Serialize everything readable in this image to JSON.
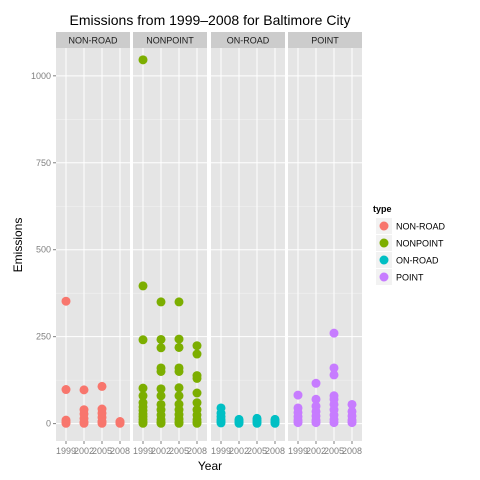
{
  "chart_data": {
    "type": "scatter",
    "title": "Emissions from 1999–2008 for Baltimore City",
    "xlabel": "Year",
    "ylabel": "Emissions",
    "x_ticks": [
      "1999",
      "2002",
      "2005",
      "2008"
    ],
    "ylim": [
      -50,
      1080
    ],
    "y_ticks": [
      0,
      250,
      500,
      750,
      1000
    ],
    "grid": true,
    "legend": {
      "title": "type",
      "position": "right"
    },
    "facets": [
      "NON-ROAD",
      "NONPOINT",
      "ON-ROAD",
      "POINT"
    ],
    "colors": {
      "NON-ROAD": "#f8766d",
      "NONPOINT": "#7cae00",
      "ON-ROAD": "#00bfc4",
      "POINT": "#c77cff"
    },
    "series": [
      {
        "name": "NON-ROAD",
        "points": [
          {
            "x": "1999",
            "y": 352
          },
          {
            "x": "1999",
            "y": 98
          },
          {
            "x": "1999",
            "y": 10
          },
          {
            "x": "1999",
            "y": 4
          },
          {
            "x": "1999",
            "y": 1
          },
          {
            "x": "2002",
            "y": 97
          },
          {
            "x": "2002",
            "y": 40
          },
          {
            "x": "2002",
            "y": 28
          },
          {
            "x": "2002",
            "y": 15
          },
          {
            "x": "2002",
            "y": 5
          },
          {
            "x": "2002",
            "y": 1
          },
          {
            "x": "2005",
            "y": 107
          },
          {
            "x": "2005",
            "y": 42
          },
          {
            "x": "2005",
            "y": 30
          },
          {
            "x": "2005",
            "y": 18
          },
          {
            "x": "2005",
            "y": 6
          },
          {
            "x": "2005",
            "y": 1
          },
          {
            "x": "2008",
            "y": 6
          },
          {
            "x": "2008",
            "y": 3
          },
          {
            "x": "2008",
            "y": 1
          }
        ]
      },
      {
        "name": "NONPOINT",
        "points": [
          {
            "x": "1999",
            "y": 1046
          },
          {
            "x": "1999",
            "y": 396
          },
          {
            "x": "1999",
            "y": 241
          },
          {
            "x": "1999",
            "y": 102
          },
          {
            "x": "1999",
            "y": 80
          },
          {
            "x": "1999",
            "y": 60
          },
          {
            "x": "1999",
            "y": 48
          },
          {
            "x": "1999",
            "y": 38
          },
          {
            "x": "1999",
            "y": 28
          },
          {
            "x": "1999",
            "y": 20
          },
          {
            "x": "1999",
            "y": 12
          },
          {
            "x": "1999",
            "y": 5
          },
          {
            "x": "1999",
            "y": 1
          },
          {
            "x": "2002",
            "y": 350
          },
          {
            "x": "2002",
            "y": 242
          },
          {
            "x": "2002",
            "y": 218
          },
          {
            "x": "2002",
            "y": 160
          },
          {
            "x": "2002",
            "y": 150
          },
          {
            "x": "2002",
            "y": 100
          },
          {
            "x": "2002",
            "y": 80
          },
          {
            "x": "2002",
            "y": 55
          },
          {
            "x": "2002",
            "y": 40
          },
          {
            "x": "2002",
            "y": 25
          },
          {
            "x": "2002",
            "y": 12
          },
          {
            "x": "2002",
            "y": 4
          },
          {
            "x": "2002",
            "y": 1
          },
          {
            "x": "2005",
            "y": 350
          },
          {
            "x": "2005",
            "y": 243
          },
          {
            "x": "2005",
            "y": 219
          },
          {
            "x": "2005",
            "y": 160
          },
          {
            "x": "2005",
            "y": 150
          },
          {
            "x": "2005",
            "y": 103
          },
          {
            "x": "2005",
            "y": 80
          },
          {
            "x": "2005",
            "y": 56
          },
          {
            "x": "2005",
            "y": 40
          },
          {
            "x": "2005",
            "y": 26
          },
          {
            "x": "2005",
            "y": 13
          },
          {
            "x": "2005",
            "y": 4
          },
          {
            "x": "2005",
            "y": 1
          },
          {
            "x": "2008",
            "y": 224
          },
          {
            "x": "2008",
            "y": 200
          },
          {
            "x": "2008",
            "y": 138
          },
          {
            "x": "2008",
            "y": 130
          },
          {
            "x": "2008",
            "y": 88
          },
          {
            "x": "2008",
            "y": 60
          },
          {
            "x": "2008",
            "y": 40
          },
          {
            "x": "2008",
            "y": 25
          },
          {
            "x": "2008",
            "y": 12
          },
          {
            "x": "2008",
            "y": 4
          },
          {
            "x": "2008",
            "y": 1
          }
        ]
      },
      {
        "name": "ON-ROAD",
        "points": [
          {
            "x": "1999",
            "y": 45
          },
          {
            "x": "1999",
            "y": 30
          },
          {
            "x": "1999",
            "y": 20
          },
          {
            "x": "1999",
            "y": 12
          },
          {
            "x": "1999",
            "y": 6
          },
          {
            "x": "1999",
            "y": 2
          },
          {
            "x": "2002",
            "y": 12
          },
          {
            "x": "2002",
            "y": 8
          },
          {
            "x": "2002",
            "y": 4
          },
          {
            "x": "2002",
            "y": 1
          },
          {
            "x": "2005",
            "y": 15
          },
          {
            "x": "2005",
            "y": 10
          },
          {
            "x": "2005",
            "y": 5
          },
          {
            "x": "2005",
            "y": 1
          },
          {
            "x": "2008",
            "y": 12
          },
          {
            "x": "2008",
            "y": 8
          },
          {
            "x": "2008",
            "y": 3
          },
          {
            "x": "2008",
            "y": 1
          }
        ]
      },
      {
        "name": "POINT",
        "points": [
          {
            "x": "1999",
            "y": 82
          },
          {
            "x": "1999",
            "y": 45
          },
          {
            "x": "1999",
            "y": 32
          },
          {
            "x": "1999",
            "y": 20
          },
          {
            "x": "1999",
            "y": 10
          },
          {
            "x": "1999",
            "y": 3
          },
          {
            "x": "2002",
            "y": 116
          },
          {
            "x": "2002",
            "y": 70
          },
          {
            "x": "2002",
            "y": 50
          },
          {
            "x": "2002",
            "y": 35
          },
          {
            "x": "2002",
            "y": 22
          },
          {
            "x": "2002",
            "y": 10
          },
          {
            "x": "2002",
            "y": 3
          },
          {
            "x": "2005",
            "y": 260
          },
          {
            "x": "2005",
            "y": 160
          },
          {
            "x": "2005",
            "y": 140
          },
          {
            "x": "2005",
            "y": 80
          },
          {
            "x": "2005",
            "y": 70
          },
          {
            "x": "2005",
            "y": 55
          },
          {
            "x": "2005",
            "y": 40
          },
          {
            "x": "2005",
            "y": 25
          },
          {
            "x": "2005",
            "y": 12
          },
          {
            "x": "2005",
            "y": 3
          },
          {
            "x": "2008",
            "y": 55
          },
          {
            "x": "2008",
            "y": 35
          },
          {
            "x": "2008",
            "y": 22
          },
          {
            "x": "2008",
            "y": 10
          },
          {
            "x": "2008",
            "y": 3
          }
        ]
      }
    ]
  }
}
